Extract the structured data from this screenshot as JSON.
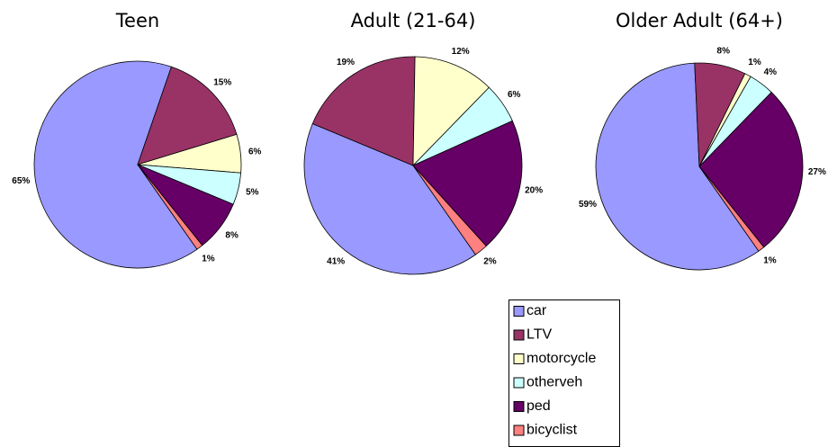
{
  "chart_data": [
    {
      "type": "pie",
      "title": "Teen",
      "categories": [
        "car",
        "LTV",
        "motorcycle",
        "otherveh",
        "ped",
        "bicyclist"
      ],
      "colors": [
        "#9999ff",
        "#993366",
        "#ffffcc",
        "#ccffff",
        "#660066",
        "#ff8080"
      ],
      "values": [
        65,
        15,
        6,
        5,
        8,
        1
      ],
      "value_labels": [
        "65%",
        "15%",
        "6%",
        "5%",
        "8%",
        "1%"
      ]
    },
    {
      "type": "pie",
      "title": "Adult (21-64)",
      "categories": [
        "car",
        "LTV",
        "motorcycle",
        "otherveh",
        "ped",
        "bicyclist"
      ],
      "colors": [
        "#9999ff",
        "#993366",
        "#ffffcc",
        "#ccffff",
        "#660066",
        "#ff8080"
      ],
      "values": [
        41,
        19,
        12,
        6,
        20,
        2
      ],
      "value_labels": [
        "41%",
        "19%",
        "12%",
        "6%",
        "20%",
        "2%"
      ]
    },
    {
      "type": "pie",
      "title": "Older Adult (64+)",
      "categories": [
        "car",
        "LTV",
        "motorcycle",
        "otherveh",
        "ped",
        "bicyclist"
      ],
      "colors": [
        "#9999ff",
        "#993366",
        "#ffffcc",
        "#ccffff",
        "#660066",
        "#ff8080"
      ],
      "values": [
        59,
        8,
        1,
        4,
        27,
        1
      ],
      "value_labels": [
        "59%",
        "8%",
        "1%",
        "4%",
        "27%",
        "1%"
      ]
    }
  ]
}
